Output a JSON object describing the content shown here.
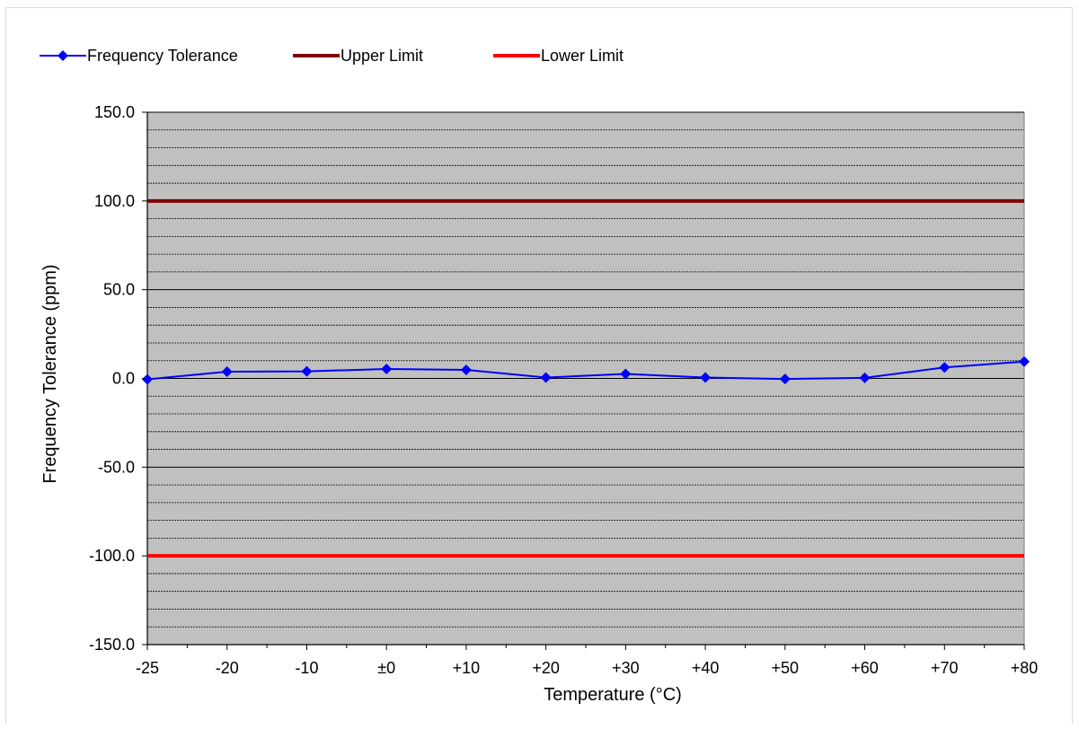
{
  "chart_data": {
    "type": "line",
    "xlabel": "Temperature (°C)",
    "ylabel": "Frequency Tolerance (ppm)",
    "categories": [
      "-25",
      "-20",
      "-10",
      "±0",
      "+10",
      "+20",
      "+30",
      "+40",
      "+50",
      "+60",
      "+70",
      "+80"
    ],
    "y_tick_labels": [
      "150.0",
      "100.0",
      "50.0",
      "0.0",
      "-50.0",
      "-100.0",
      "-150.0"
    ],
    "ylim": [
      -150,
      150
    ],
    "y_major_step": 50,
    "y_minor_step": 10,
    "grid": true,
    "legend_position": "top-left",
    "plot_background": "#c0c0c0",
    "series": [
      {
        "name": "Frequency Tolerance",
        "color": "#0000ff",
        "marker": "diamond",
        "values": [
          -0.5,
          3.8,
          4.0,
          5.3,
          4.8,
          0.5,
          2.5,
          0.5,
          -0.3,
          0.3,
          6.2,
          9.5
        ]
      },
      {
        "name": "Upper Limit",
        "color": "#800000",
        "marker": "none",
        "values": [
          100,
          100,
          100,
          100,
          100,
          100,
          100,
          100,
          100,
          100,
          100,
          100
        ]
      },
      {
        "name": "Lower Limit",
        "color": "#ff0000",
        "marker": "none",
        "values": [
          -100,
          -100,
          -100,
          -100,
          -100,
          -100,
          -100,
          -100,
          -100,
          -100,
          -100,
          -100
        ]
      }
    ]
  }
}
